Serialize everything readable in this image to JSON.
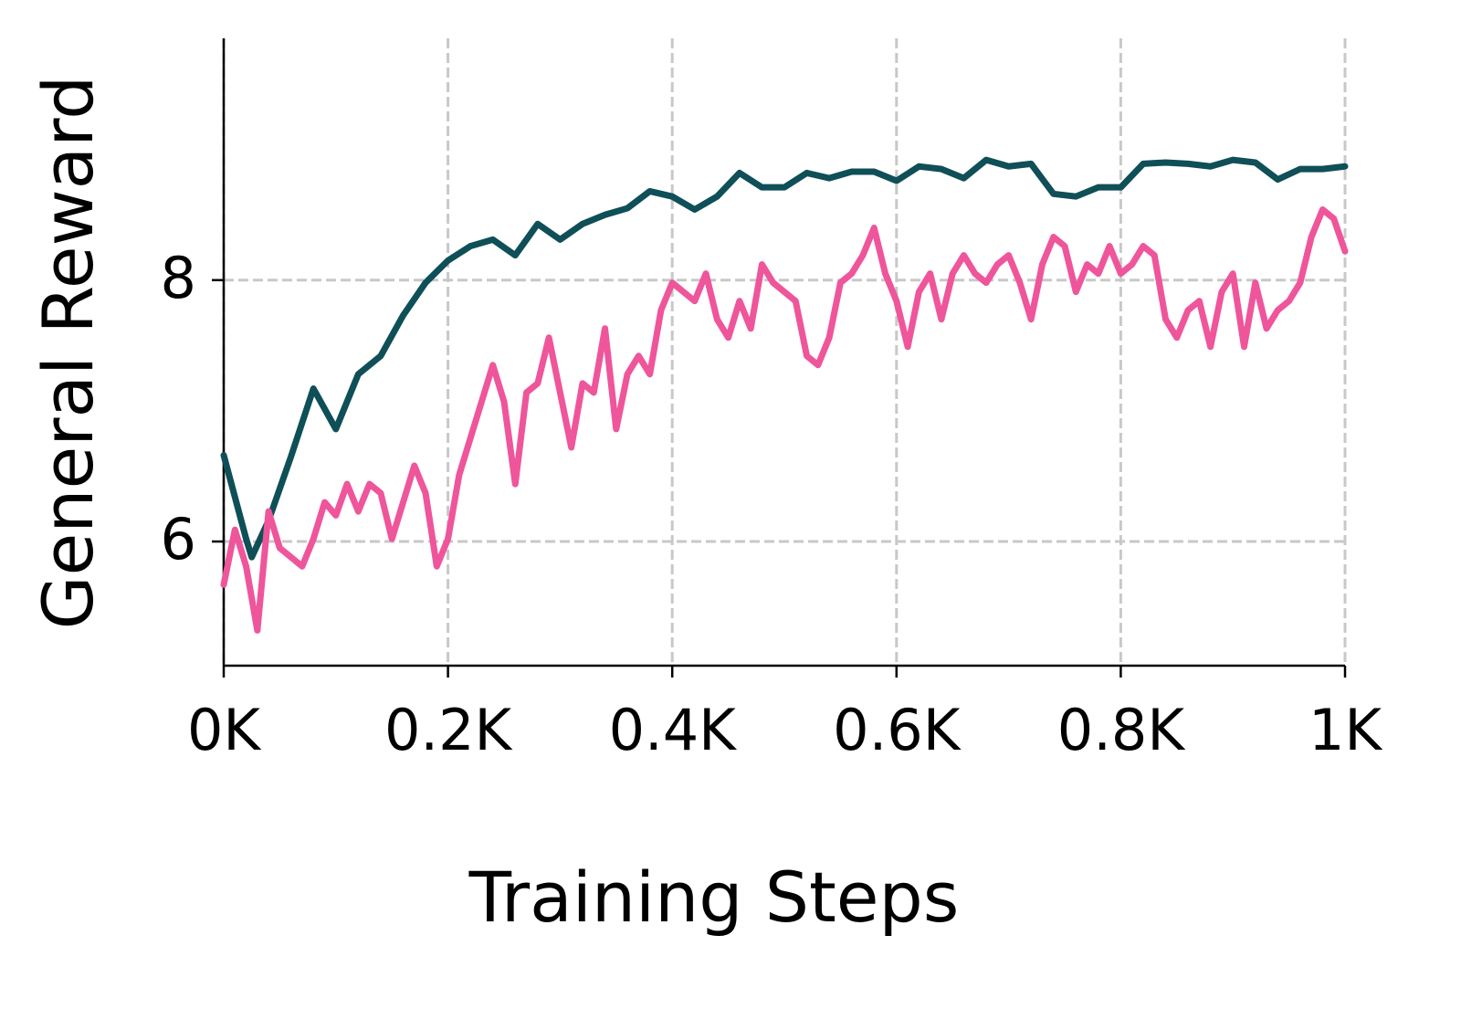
{
  "chart_data": {
    "type": "line",
    "xlabel": "Training Steps",
    "ylabel": "General Reward",
    "xlim": [
      0,
      1000
    ],
    "xticks": [
      {
        "value": 0,
        "label": "0K"
      },
      {
        "value": 200,
        "label": "0.2K"
      },
      {
        "value": 400,
        "label": "0.4K"
      },
      {
        "value": 600,
        "label": "0.6K"
      },
      {
        "value": 800,
        "label": "0.8K"
      },
      {
        "value": 1000,
        "label": "1K"
      }
    ],
    "ylim": [
      5.05,
      9.85
    ],
    "yticks": [
      6,
      8
    ],
    "grid": true,
    "series": [
      {
        "color": "#0f4f57",
        "x": [
          0,
          20,
          25,
          40,
          60,
          80,
          100,
          120,
          140,
          160,
          180,
          200,
          220,
          240,
          260,
          280,
          300,
          320,
          340,
          360,
          380,
          400,
          420,
          440,
          460,
          480,
          500,
          520,
          540,
          560,
          580,
          600,
          620,
          640,
          660,
          680,
          700,
          720,
          740,
          760,
          780,
          800,
          820,
          840,
          860,
          880,
          900,
          920,
          940,
          960,
          980,
          1000
        ],
        "values": [
          6.66,
          6.02,
          5.88,
          6.16,
          6.65,
          7.17,
          6.86,
          7.28,
          7.42,
          7.73,
          7.98,
          8.15,
          8.26,
          8.31,
          8.19,
          8.43,
          8.31,
          8.43,
          8.5,
          8.55,
          8.68,
          8.64,
          8.54,
          8.64,
          8.82,
          8.71,
          8.71,
          8.82,
          8.78,
          8.83,
          8.83,
          8.76,
          8.87,
          8.85,
          8.78,
          8.92,
          8.87,
          8.89,
          8.66,
          8.64,
          8.71,
          8.71,
          8.89,
          8.9,
          8.89,
          8.87,
          8.92,
          8.9,
          8.77,
          8.85,
          8.85,
          8.87
        ]
      },
      {
        "color": "#ef559b",
        "x": [
          0,
          10,
          20,
          30,
          40,
          50,
          60,
          70,
          80,
          90,
          100,
          110,
          120,
          130,
          140,
          150,
          160,
          170,
          180,
          190,
          200,
          210,
          220,
          230,
          240,
          250,
          260,
          270,
          280,
          290,
          300,
          310,
          320,
          330,
          340,
          350,
          360,
          370,
          380,
          390,
          400,
          410,
          420,
          430,
          440,
          450,
          460,
          470,
          480,
          490,
          500,
          510,
          520,
          530,
          540,
          550,
          560,
          570,
          580,
          590,
          600,
          610,
          620,
          630,
          640,
          650,
          660,
          670,
          680,
          690,
          700,
          710,
          720,
          730,
          740,
          750,
          760,
          770,
          780,
          790,
          800,
          810,
          820,
          830,
          840,
          850,
          860,
          870,
          880,
          890,
          900,
          910,
          920,
          930,
          940,
          950,
          960,
          970,
          980,
          990,
          1000
        ],
        "values": [
          5.67,
          6.09,
          5.81,
          5.32,
          6.23,
          5.95,
          5.88,
          5.81,
          6.02,
          6.3,
          6.2,
          6.44,
          6.23,
          6.44,
          6.37,
          6.02,
          6.3,
          6.58,
          6.37,
          5.81,
          6.02,
          6.51,
          6.79,
          7.07,
          7.35,
          7.07,
          6.44,
          7.14,
          7.21,
          7.56,
          7.14,
          6.72,
          7.21,
          7.14,
          7.63,
          6.86,
          7.28,
          7.42,
          7.28,
          7.77,
          7.98,
          7.91,
          7.84,
          8.05,
          7.7,
          7.56,
          7.84,
          7.63,
          8.12,
          7.98,
          7.91,
          7.84,
          7.42,
          7.35,
          7.56,
          7.98,
          8.05,
          8.19,
          8.4,
          8.05,
          7.84,
          7.49,
          7.91,
          8.05,
          7.7,
          8.05,
          8.19,
          8.05,
          7.98,
          8.12,
          8.19,
          7.98,
          7.7,
          8.12,
          8.33,
          8.26,
          7.91,
          8.12,
          8.05,
          8.26,
          8.05,
          8.12,
          8.26,
          8.19,
          7.7,
          7.56,
          7.77,
          7.84,
          7.49,
          7.91,
          8.05,
          7.49,
          7.98,
          7.63,
          7.77,
          7.84,
          7.98,
          8.33,
          8.54,
          8.47,
          8.22
        ]
      }
    ]
  }
}
